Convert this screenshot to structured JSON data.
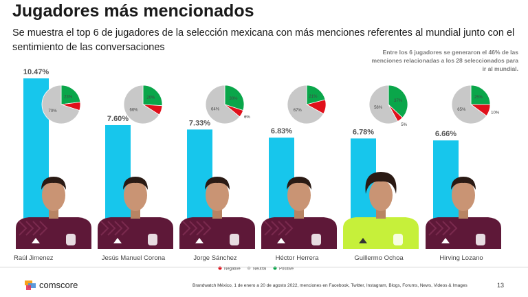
{
  "title": "Jugadores más mencionados",
  "subtitle": "Se muestra el top 6 de jugadores de la selección mexicana con más menciones referentes al mundial junto con el sentimiento de las conversaciones",
  "note": "Entre los 6 jugadores se generaron el 46% de las menciones relacionadas a los 28 seleccionados para ir al mundial.",
  "colors": {
    "bar": "#17c6ec",
    "negative": "#e0101b",
    "neutral": "#c8c8c8",
    "positive": "#0aa64a",
    "home_shirt": "#5e1838",
    "keeper_shirt": "#c6f03a"
  },
  "legend": {
    "negative": "Negative",
    "neutral": "Neutral",
    "positive": "Positive"
  },
  "chart_data": {
    "type": "bar",
    "categories": [
      "Raúl Jimenez",
      "Jesús Manuel Corona",
      "Jorge Sánchez",
      "Héctor Herrera",
      "Guillermo Ochoa",
      "Hirving Lozano"
    ],
    "values": [
      10.47,
      7.6,
      7.33,
      6.83,
      6.78,
      6.66
    ],
    "value_labels": [
      "10.47%",
      "7.60%",
      "7.33%",
      "6.83%",
      "6.78%",
      "6.66%"
    ],
    "ylim": [
      0,
      11
    ],
    "sentiment": [
      {
        "player": "Raúl Jimenez",
        "negative": 7,
        "neutral": 70,
        "positive": 23,
        "labels": {
          "negative": "",
          "neutral": "70%",
          "positive": "23%"
        }
      },
      {
        "player": "Jesús Manuel Corona",
        "negative": 8,
        "neutral": 66,
        "positive": 26,
        "labels": {
          "negative": "",
          "neutral": "66%",
          "positive": "26%"
        }
      },
      {
        "player": "Jorge Sánchez",
        "negative": 6,
        "neutral": 64,
        "positive": 30,
        "labels": {
          "negative": "6%",
          "neutral": "64%",
          "positive": "30%"
        }
      },
      {
        "player": "Héctor Herrera",
        "negative": 12,
        "neutral": 67,
        "positive": 21,
        "labels": {
          "negative": "",
          "neutral": "67%",
          "positive": "21%"
        }
      },
      {
        "player": "Guillermo Ochoa",
        "negative": 5,
        "neutral": 58,
        "positive": 37,
        "labels": {
          "negative": "5%",
          "neutral": "58%",
          "positive": "37%"
        }
      },
      {
        "player": "Hirving Lozano",
        "negative": 10,
        "neutral": 65,
        "positive": 25,
        "labels": {
          "negative": "10%",
          "neutral": "65%",
          "positive": "25%"
        }
      }
    ]
  },
  "footer": {
    "brand": "comscore",
    "source": "Brandwatch México, 1 de enero a 20 de agosto 2022, menciones en Facebook, Twitter, Instagram, Blogs, Forums, News, Videos & Images",
    "page": "13"
  }
}
